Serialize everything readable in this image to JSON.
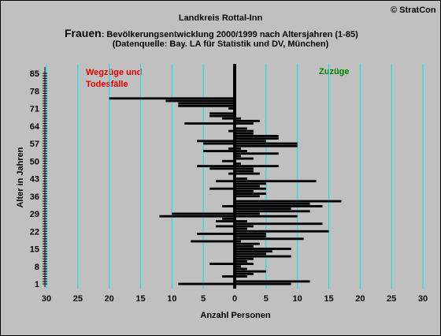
{
  "copyright": "© StratCon",
  "title_line1": "Landkreis Rottal-Inn",
  "title_prefix": "Frauen",
  "title_line2_rest": ": Bevölkerungsentwicklung 2000/1999  nach Altersjahren (1-85)",
  "title_line3": "(Datenquelle: Bay. LA für Statistik und DV, München)",
  "annotation_left": [
    "Wegzüge und",
    "Todesfälle"
  ],
  "annotation_right": "Zuzüge",
  "colors": {
    "background": "#c0c0c0",
    "bars": "#000000",
    "gridlines": "#00e5e5",
    "annotation_left": "#e00000",
    "annotation_right": "#008000"
  },
  "chart_data": {
    "type": "bar",
    "orientation": "horizontal",
    "xlabel": "Anzahl Personen",
    "ylabel": "Alter in Jahren",
    "xlim": [
      -30,
      30
    ],
    "xticks": [
      -30,
      -25,
      -20,
      -15,
      -10,
      -5,
      0,
      5,
      10,
      15,
      20,
      25,
      30
    ],
    "xtick_labels": [
      "30",
      "25",
      "20",
      "15",
      "10",
      "5",
      "0",
      "5",
      "10",
      "15",
      "20",
      "25",
      "30"
    ],
    "ylim": [
      1,
      85
    ],
    "yticks": [
      1,
      8,
      15,
      22,
      29,
      36,
      43,
      50,
      57,
      64,
      71,
      78,
      85
    ],
    "grid": "vertical",
    "series": [
      {
        "name": "Wegzüge und Todesfälle",
        "ages": [
          1,
          2,
          3,
          4,
          5,
          6,
          7,
          8,
          9,
          10,
          11,
          12,
          13,
          14,
          15,
          16,
          17,
          18,
          19,
          20,
          21,
          22,
          23,
          24,
          25,
          26,
          27,
          28,
          29,
          30,
          31,
          32,
          33,
          34,
          35,
          36,
          37,
          38,
          39,
          40,
          41,
          42,
          43,
          44,
          45,
          46,
          47,
          48,
          49,
          50,
          51,
          52,
          53,
          54,
          55,
          56,
          57,
          58,
          59,
          60,
          61,
          62,
          63,
          64,
          65,
          66,
          67,
          68,
          69,
          70,
          71,
          72,
          73,
          74,
          75,
          76,
          77,
          78,
          79,
          80,
          81,
          82,
          83,
          84,
          85
        ],
        "values": [
          -9,
          0,
          0,
          -2,
          0,
          0,
          0,
          0,
          -4,
          0,
          0,
          0,
          0,
          0,
          0,
          0,
          0,
          -7,
          0,
          0,
          -6,
          0,
          0,
          -3,
          0,
          -3,
          -2,
          -12,
          -10,
          0,
          0,
          -2,
          0,
          0,
          0,
          0,
          0,
          0,
          -4,
          0,
          0,
          -3,
          0,
          0,
          -1,
          0,
          -4,
          -6,
          0,
          -2,
          0,
          0,
          0,
          -5,
          -1,
          0,
          -5,
          -6,
          0,
          0,
          0,
          -1,
          0,
          0,
          -8,
          0,
          -2,
          -4,
          -4,
          0,
          -1,
          -9,
          -9,
          -11,
          -20,
          0,
          0,
          0,
          0,
          0,
          0,
          0,
          0,
          0,
          0
        ]
      },
      {
        "name": "Zuzüge",
        "ages": [
          1,
          2,
          3,
          4,
          5,
          6,
          7,
          8,
          9,
          10,
          11,
          12,
          13,
          14,
          15,
          16,
          17,
          18,
          19,
          20,
          21,
          22,
          23,
          24,
          25,
          26,
          27,
          28,
          29,
          30,
          31,
          32,
          33,
          34,
          35,
          36,
          37,
          38,
          39,
          40,
          41,
          42,
          43,
          44,
          45,
          46,
          47,
          48,
          49,
          50,
          51,
          52,
          53,
          54,
          55,
          56,
          57,
          58,
          59,
          60,
          61,
          62,
          63,
          64,
          65,
          66,
          67,
          68,
          69,
          70,
          71,
          72,
          73,
          74,
          75,
          76,
          77,
          78,
          79,
          80,
          81,
          82,
          83,
          84,
          85
        ],
        "values": [
          9,
          12,
          0,
          2,
          3,
          5,
          2,
          1,
          3,
          2,
          3,
          9,
          5,
          6,
          9,
          3,
          4,
          1,
          11,
          5,
          5,
          15,
          2,
          3,
          14,
          2,
          0,
          10,
          4,
          12,
          9,
          14,
          12,
          17,
          0,
          4,
          5,
          3,
          5,
          4,
          5,
          13,
          2,
          0,
          4,
          3,
          3,
          7,
          1,
          0,
          3,
          1,
          7,
          2,
          1,
          10,
          10,
          5,
          7,
          7,
          3,
          3,
          2,
          0,
          3,
          4,
          1,
          0,
          0,
          0,
          0,
          0,
          0,
          0,
          0,
          0,
          0,
          0,
          0,
          0,
          0,
          0,
          0,
          0,
          0
        ]
      }
    ]
  }
}
